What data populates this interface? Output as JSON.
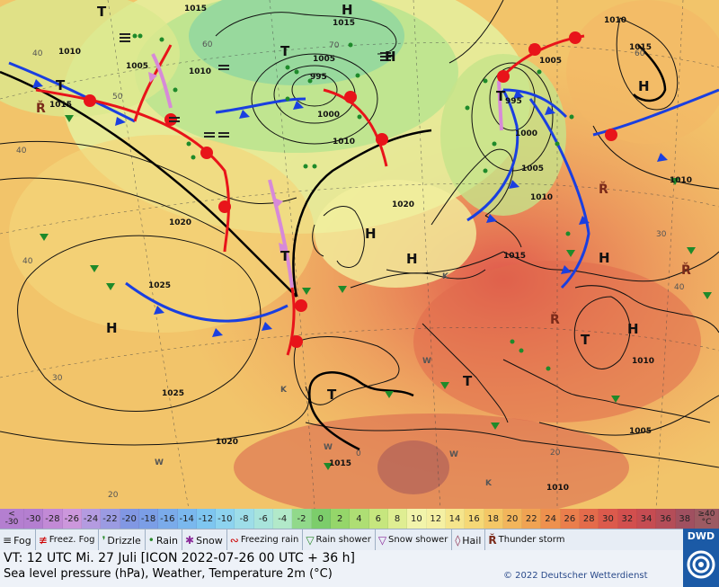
{
  "map": {
    "pressure_labels": [
      "1015",
      "1015",
      "1010",
      "1005",
      "1010",
      "995",
      "1000",
      "1005",
      "1010",
      "1015",
      "1010",
      "1005",
      "1000",
      "995",
      "1005",
      "1010",
      "1010",
      "1015",
      "1020",
      "1025",
      "1020",
      "1015",
      "1025",
      "1020",
      "1015",
      "1010",
      "1010",
      "1005",
      "1010",
      "1010",
      "1015",
      "1015"
    ],
    "centers": {
      "H": "H",
      "T": "T"
    },
    "temp_labels": [
      "60",
      "50",
      "40",
      "40",
      "30",
      "20",
      "30",
      "40",
      "40",
      "20",
      "70",
      "0",
      "60"
    ],
    "weather_letters": {
      "K": "K",
      "W": "W"
    }
  },
  "scale": {
    "first_top": "<",
    "first_bottom": "-30",
    "values": [
      "-30",
      "-28",
      "-26",
      "-24",
      "-22",
      "-20",
      "-18",
      "-16",
      "-14",
      "-12",
      "-10",
      "-8",
      "-6",
      "-4",
      "-2",
      "0",
      "2",
      "4",
      "6",
      "8",
      "10",
      "12",
      "14",
      "16",
      "18",
      "20",
      "22",
      "24",
      "26",
      "28",
      "30",
      "32",
      "34",
      "36",
      "38"
    ],
    "last_top": "≥40",
    "last_bottom": "°C",
    "colors": [
      "#b47fd0",
      "#c28ad6",
      "#cc97dc",
      "#b49be0",
      "#9b9be2",
      "#8197e3",
      "#7b9ee6",
      "#7aabea",
      "#7ab8ee",
      "#7ec6f0",
      "#8dd3ef",
      "#9ddde8",
      "#a8e4db",
      "#b2e9c9",
      "#91d98a",
      "#7ccd6b",
      "#95d66a",
      "#aede74",
      "#c6e67e",
      "#dfee92",
      "#f2f4ab",
      "#f5f0a3",
      "#f5e58c",
      "#f5d876",
      "#f4c766",
      "#f2b55c",
      "#f0a353",
      "#ee914e",
      "#ea7e4c",
      "#e46b4b",
      "#dc5a4c",
      "#d24f4e",
      "#c54c52",
      "#b44d58",
      "#a05060"
    ]
  },
  "legend": [
    {
      "symbol": "fog-icon",
      "label": "Fog"
    },
    {
      "symbol": "freezing-fog-icon",
      "label": "Freez. Fog"
    },
    {
      "symbol": "drizzle-icon",
      "label": "Drizzle"
    },
    {
      "symbol": "rain-icon",
      "label": "Rain"
    },
    {
      "symbol": "snow-icon",
      "label": "Snow"
    },
    {
      "symbol": "freezing-rain-icon",
      "label": "Freezing rain"
    },
    {
      "symbol": "rain-shower-icon",
      "label": "Rain shower"
    },
    {
      "symbol": "snow-shower-icon",
      "label": "Snow shower"
    },
    {
      "symbol": "hail-icon",
      "label": "Hail"
    },
    {
      "symbol": "thunderstorm-icon",
      "label": "Thunder storm"
    }
  ],
  "footer": {
    "valid_time": "VT: 12 UTC Mi.  27 Juli [ICON 2022-07-26  00 UTC + 36 h]",
    "description": "Sea level pressure (hPa), Weather, Temperature 2m (°C)",
    "copyright": "© 2022 Deutscher Wetterdienst",
    "logo": "DWD"
  },
  "colors": {
    "cold_front": "#1a3fe0",
    "warm_front": "#e8141a",
    "occlusion": "#d78ad8",
    "isobar": "#111111"
  }
}
